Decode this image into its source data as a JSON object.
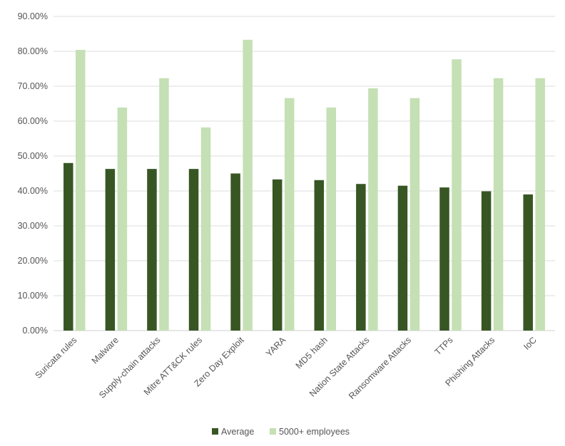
{
  "chart_data": {
    "type": "bar",
    "title": "",
    "xlabel": "",
    "ylabel": "",
    "ylim": [
      0,
      90
    ],
    "y_ticks": [
      "0.00%",
      "10.00%",
      "20.00%",
      "30.00%",
      "40.00%",
      "50.00%",
      "60.00%",
      "70.00%",
      "80.00%",
      "90.00%"
    ],
    "grid": true,
    "legend_position": "bottom",
    "categories": [
      "Suricata rules",
      "Malware",
      "Supply-chain attacks",
      "Mitre ATT&CK rules",
      "Zero Day Exploit",
      "YARA",
      "MD5 hash",
      "Nation State Attacks",
      "Ransomware Attacks",
      "TTPs",
      "Phishing Attacks",
      "IoC"
    ],
    "series": [
      {
        "name": "Average",
        "color": "#375623",
        "values": [
          48.0,
          46.3,
          46.3,
          46.3,
          45.0,
          43.3,
          43.1,
          42.0,
          41.5,
          41.0,
          39.9,
          39.0
        ]
      },
      {
        "name": "5000+ employees",
        "color": "#c5e0b4",
        "values": [
          80.4,
          63.9,
          72.3,
          58.2,
          83.3,
          66.6,
          63.9,
          69.4,
          66.6,
          77.7,
          72.3,
          72.3
        ]
      }
    ]
  }
}
